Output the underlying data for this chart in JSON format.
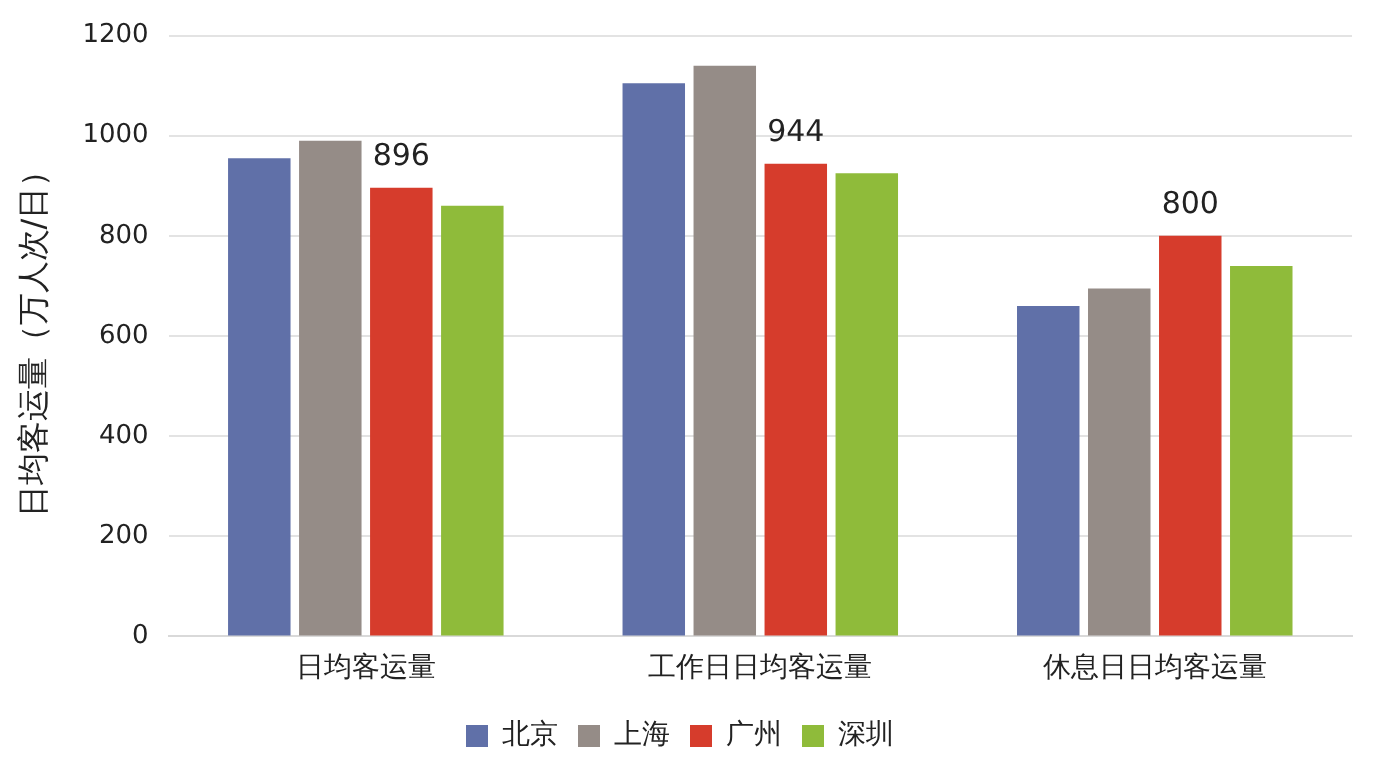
{
  "chart_data": {
    "type": "bar",
    "ylabel": "日均客运量（万人次/日）",
    "categories": [
      "日均客运量",
      "工作日日均客运量",
      "休息日日均客运量"
    ],
    "series": [
      {
        "name": "北京",
        "color": "#6070a8",
        "values": [
          955,
          1105,
          660
        ]
      },
      {
        "name": "上海",
        "color": "#958c87",
        "values": [
          990,
          1140,
          695
        ]
      },
      {
        "name": "广州",
        "color": "#d63c2c",
        "values": [
          896,
          944,
          800
        ],
        "value_labels": [
          "896",
          "944",
          "800"
        ]
      },
      {
        "name": "深圳",
        "color": "#8fbb3a",
        "values": [
          860,
          925,
          740
        ]
      }
    ],
    "ylim": [
      0,
      1200
    ],
    "yticks": [
      0,
      200,
      400,
      600,
      800,
      1000,
      1200
    ],
    "grid": "y",
    "legend": "bottom"
  }
}
